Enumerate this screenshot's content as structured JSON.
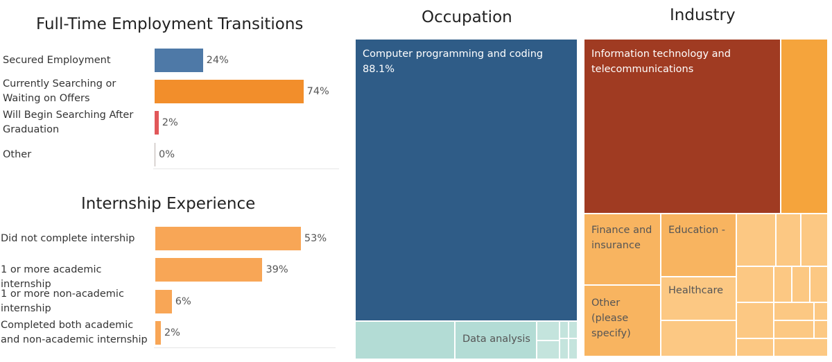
{
  "chart_data": [
    {
      "type": "bar",
      "orientation": "horizontal",
      "title": "Full-Time Employment Transitions",
      "categories": [
        "Secured Employment",
        "Currently Searching or Waiting on Offers",
        " Will Begin Searching After Graduation",
        "Other"
      ],
      "values": [
        24,
        74,
        2,
        0
      ],
      "value_labels": [
        "24%",
        "74%",
        "2%",
        "0%"
      ],
      "colors": [
        "#4e79a7",
        "#f28e2b",
        "#e15759",
        "#bab0ac"
      ],
      "xlim": [
        0,
        100
      ]
    },
    {
      "type": "bar",
      "orientation": "horizontal",
      "title": "Internship Experience",
      "categories": [
        "Did not complete intership",
        "1 or more academic internship",
        "1 or more non-academic internship",
        "Completed both academic and non-academic internship"
      ],
      "values": [
        53,
        39,
        6,
        2
      ],
      "value_labels": [
        "53%",
        "39%",
        "6%",
        "2%"
      ],
      "colors": [
        "#f8a656",
        "#f8a656",
        "#f8a656",
        "#f8a656"
      ],
      "xlim": [
        0,
        100
      ]
    },
    {
      "type": "treemap",
      "title": "Occupation",
      "tiles": [
        {
          "label": "Computer programming and coding",
          "value_label": "88.1%",
          "color": "#2f5c87"
        },
        {
          "label": "",
          "color": "#b3dcd5"
        },
        {
          "label": "Data analysis",
          "color": "#b3dcd5"
        },
        {
          "label": "",
          "color": "#c4e4dd"
        },
        {
          "label": "",
          "color": "#c4e4dd"
        },
        {
          "label": "",
          "color": "#c4e4dd"
        },
        {
          "label": "",
          "color": "#c4e4dd"
        },
        {
          "label": "",
          "color": "#c4e4dd"
        },
        {
          "label": "",
          "color": "#c4e4dd"
        }
      ]
    },
    {
      "type": "treemap",
      "title": "Industry",
      "tiles": [
        {
          "label": "Information technology and telecommunications",
          "color": "#a03b22"
        },
        {
          "label": "",
          "color": "#f5a43c"
        },
        {
          "label": "Finance and insurance",
          "color": "#f8b460"
        },
        {
          "label": "Education -",
          "color": "#f8b460"
        },
        {
          "label": "Other (please specify)",
          "color": "#f8b460"
        },
        {
          "label": "Healthcare",
          "color": "#fcc883"
        },
        {
          "label": "",
          "color": "#fcc883"
        },
        {
          "label": "",
          "color": "#fcc883"
        },
        {
          "label": "",
          "color": "#fcc883"
        },
        {
          "label": "",
          "color": "#fcc883"
        },
        {
          "label": "",
          "color": "#fcc883"
        },
        {
          "label": "",
          "color": "#fcc883"
        },
        {
          "label": "",
          "color": "#fcc883"
        },
        {
          "label": "",
          "color": "#fcc883"
        },
        {
          "label": "",
          "color": "#fcc883"
        },
        {
          "label": "",
          "color": "#fcc883"
        },
        {
          "label": "",
          "color": "#fcc883"
        },
        {
          "label": "",
          "color": "#fcc883"
        },
        {
          "label": "",
          "color": "#fcc883"
        },
        {
          "label": "",
          "color": "#fcc883"
        },
        {
          "label": "",
          "color": "#fcc883"
        }
      ]
    }
  ]
}
